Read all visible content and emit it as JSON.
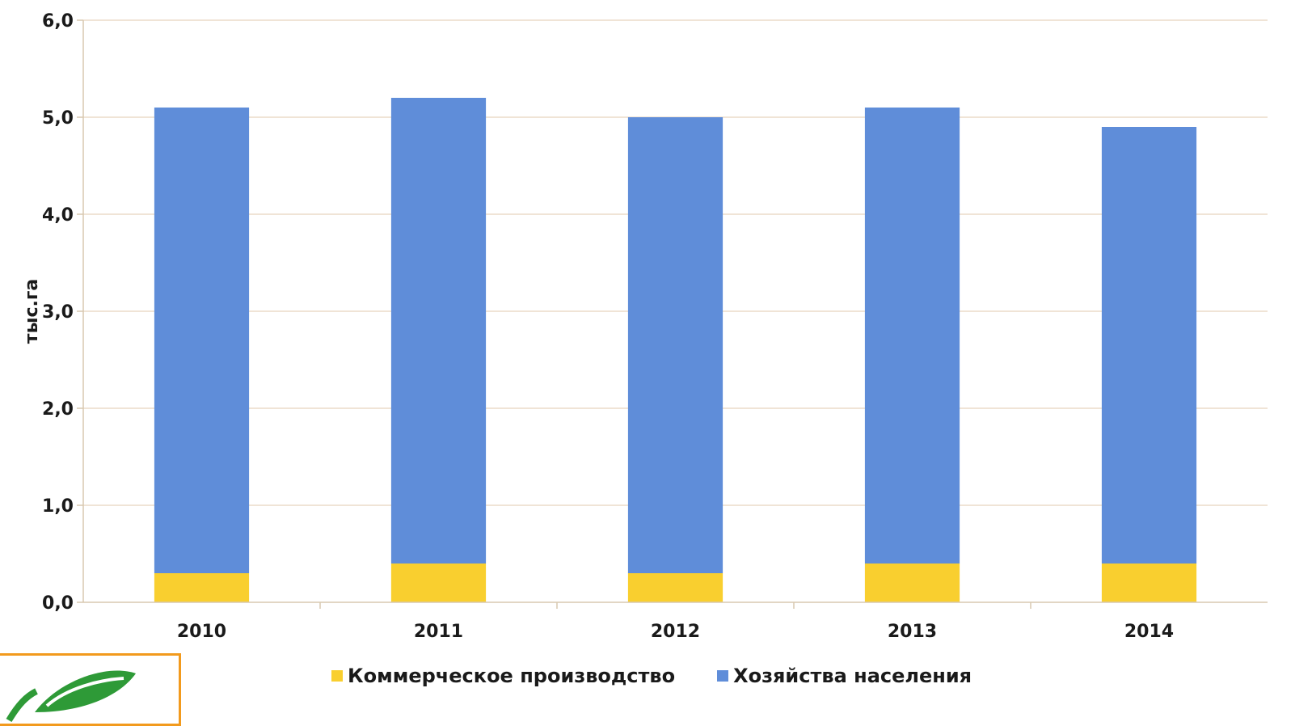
{
  "colors": {
    "commercial": "#f9cf2f",
    "households": "#5f8dd9",
    "grid": "#ecdcc8",
    "axis": "#d8c8b0",
    "logo_border": "#f29a1d",
    "logo_leaf": "#2e9a37"
  },
  "chart_data": {
    "type": "bar",
    "stacked": true,
    "categories": [
      "2010",
      "2011",
      "2012",
      "2013",
      "2014"
    ],
    "series": [
      {
        "name": "Коммерческое производство",
        "values": [
          0.3,
          0.4,
          0.3,
          0.4,
          0.4
        ]
      },
      {
        "name": "Хозяйства населения",
        "values": [
          4.8,
          4.8,
          4.7,
          4.7,
          4.5
        ]
      }
    ],
    "title": "",
    "xlabel": "",
    "ylabel": "тыс.га",
    "ylim": [
      0,
      6
    ],
    "yticks": [
      "0,0",
      "1,0",
      "2,0",
      "3,0",
      "4,0",
      "5,0",
      "6,0"
    ],
    "grid": true,
    "legend_position": "bottom"
  },
  "legend": {
    "item1": "Коммерческое производство",
    "item2": "Хозяйства населения"
  },
  "logo": {
    "icon": "leaf-icon"
  }
}
